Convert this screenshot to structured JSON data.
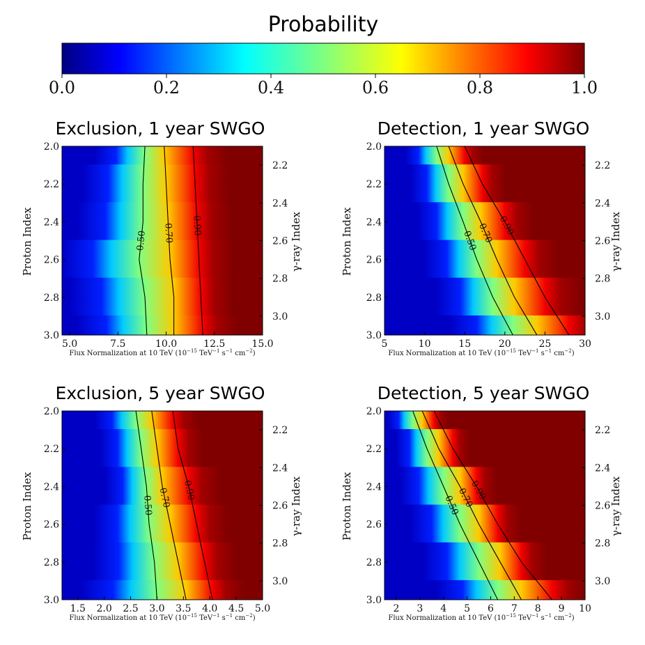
{
  "colorbar": {
    "title": "Probability",
    "ticks": [
      "0.0",
      "0.2",
      "0.4",
      "0.6",
      "0.8",
      "1.0"
    ],
    "tick_values": [
      0.0,
      0.2,
      0.4,
      0.6,
      0.8,
      1.0
    ],
    "range": [
      0.0,
      1.0
    ],
    "colormap": "jet",
    "colormap_stops": [
      "#000080",
      "#0000ff",
      "#00ffff",
      "#ffff00",
      "#ff0000",
      "#800000"
    ]
  },
  "chart_data": [
    {
      "type": "heatmap",
      "title": "Exclusion, 1 year SWGO",
      "xlabel": "Flux Normalization at 10 TeV (10^{-15} TeV^{-1} s^{-1} cm^{-2})",
      "ylabel": "Proton Index",
      "y2label": "γ-ray Index",
      "xlim": [
        4.6,
        15.0
      ],
      "ylim": [
        3.0,
        2.0
      ],
      "y2lim": [
        3.1,
        2.1
      ],
      "xticks": [
        "5.0",
        "7.5",
        "10.0",
        "12.5",
        "15.0"
      ],
      "xtick_values": [
        5.0,
        7.5,
        10.0,
        12.5,
        15.0
      ],
      "yticks": [
        "2.0",
        "2.2",
        "2.4",
        "2.6",
        "2.8",
        "3.0"
      ],
      "ytick_values": [
        2.0,
        2.2,
        2.4,
        2.6,
        2.8,
        3.0
      ],
      "y2ticks": [
        "2.2",
        "2.4",
        "2.6",
        "2.8",
        "3.0"
      ],
      "y2tick_values": [
        2.2,
        2.4,
        2.6,
        2.8,
        3.0
      ],
      "contours": [
        {
          "level": 0.5,
          "label": "0.50",
          "points": [
            [
              8.9,
              2.0
            ],
            [
              8.8,
              2.2
            ],
            [
              8.8,
              2.4
            ],
            [
              8.6,
              2.6
            ],
            [
              8.9,
              2.8
            ],
            [
              9.0,
              3.0
            ]
          ]
        },
        {
          "level": 0.7,
          "label": "0.70",
          "points": [
            [
              9.9,
              2.0
            ],
            [
              10.0,
              2.2
            ],
            [
              10.1,
              2.4
            ],
            [
              10.2,
              2.6
            ],
            [
              10.4,
              2.8
            ],
            [
              10.4,
              3.0
            ]
          ]
        },
        {
          "level": 0.9,
          "label": "0.90",
          "points": [
            [
              11.4,
              2.0
            ],
            [
              11.5,
              2.2
            ],
            [
              11.6,
              2.4
            ],
            [
              11.7,
              2.6
            ],
            [
              11.8,
              2.8
            ],
            [
              11.9,
              3.0
            ]
          ]
        }
      ]
    },
    {
      "type": "heatmap",
      "title": "Detection, 1 year SWGO",
      "xlabel": "Flux Normalization at 10 TeV (10^{-15} TeV^{-1} s^{-1} cm^{-2})",
      "ylabel": "Proton Index",
      "y2label": "γ-ray Index",
      "xlim": [
        5,
        30
      ],
      "ylim": [
        3.0,
        2.0
      ],
      "y2lim": [
        3.1,
        2.1
      ],
      "xticks": [
        "5",
        "10",
        "15",
        "20",
        "25",
        "30"
      ],
      "xtick_values": [
        5,
        10,
        15,
        20,
        25,
        30
      ],
      "yticks": [
        "2.0",
        "2.2",
        "2.4",
        "2.6",
        "2.8",
        "3.0"
      ],
      "ytick_values": [
        2.0,
        2.2,
        2.4,
        2.6,
        2.8,
        3.0
      ],
      "y2ticks": [
        "2.2",
        "2.4",
        "2.6",
        "2.8",
        "3.0"
      ],
      "y2tick_values": [
        2.2,
        2.4,
        2.6,
        2.8,
        3.0
      ],
      "contours": [
        {
          "level": 0.5,
          "label": "0.50",
          "points": [
            [
              11.5,
              2.0
            ],
            [
              13.0,
              2.2
            ],
            [
              14.8,
              2.4
            ],
            [
              16.5,
              2.6
            ],
            [
              18.5,
              2.8
            ],
            [
              21.0,
              3.0
            ]
          ]
        },
        {
          "level": 0.7,
          "label": "0.70",
          "points": [
            [
              13.0,
              2.0
            ],
            [
              14.8,
              2.2
            ],
            [
              17.0,
              2.4
            ],
            [
              19.0,
              2.6
            ],
            [
              21.2,
              2.8
            ],
            [
              24.0,
              3.0
            ]
          ]
        },
        {
          "level": 0.9,
          "label": "0.90",
          "points": [
            [
              15.0,
              2.0
            ],
            [
              17.2,
              2.2
            ],
            [
              20.0,
              2.4
            ],
            [
              22.5,
              2.6
            ],
            [
              25.0,
              2.8
            ],
            [
              28.0,
              3.0
            ]
          ]
        }
      ]
    },
    {
      "type": "heatmap",
      "title": "Exclusion, 5 year SWGO",
      "xlabel": "Flux Normalization at 10 TeV (10^{-15} TeV^{-1} s^{-1} cm^{-2})",
      "ylabel": "Proton Index",
      "y2label": "γ-ray Index",
      "xlim": [
        1.2,
        5.0
      ],
      "ylim": [
        3.0,
        2.0
      ],
      "y2lim": [
        3.1,
        2.1
      ],
      "xticks": [
        "1.5",
        "2.0",
        "2.5",
        "3.0",
        "3.5",
        "4.0",
        "4.5",
        "5.0"
      ],
      "xtick_values": [
        1.5,
        2.0,
        2.5,
        3.0,
        3.5,
        4.0,
        4.5,
        5.0
      ],
      "yticks": [
        "2.0",
        "2.2",
        "2.4",
        "2.6",
        "2.8",
        "3.0"
      ],
      "ytick_values": [
        2.0,
        2.2,
        2.4,
        2.6,
        2.8,
        3.0
      ],
      "y2ticks": [
        "2.2",
        "2.4",
        "2.6",
        "2.8",
        "3.0"
      ],
      "y2tick_values": [
        2.2,
        2.4,
        2.6,
        2.8,
        3.0
      ],
      "contours": [
        {
          "level": 0.5,
          "label": "0.50",
          "points": [
            [
              2.6,
              2.0
            ],
            [
              2.7,
              2.2
            ],
            [
              2.8,
              2.4
            ],
            [
              2.85,
              2.6
            ],
            [
              2.95,
              2.8
            ],
            [
              3.0,
              3.0
            ]
          ]
        },
        {
          "level": 0.7,
          "label": "0.70",
          "points": [
            [
              2.9,
              2.0
            ],
            [
              3.0,
              2.2
            ],
            [
              3.1,
              2.4
            ],
            [
              3.25,
              2.6
            ],
            [
              3.4,
              2.8
            ],
            [
              3.55,
              3.0
            ]
          ]
        },
        {
          "level": 0.9,
          "label": "0.90",
          "points": [
            [
              3.3,
              2.0
            ],
            [
              3.4,
              2.2
            ],
            [
              3.6,
              2.4
            ],
            [
              3.75,
              2.6
            ],
            [
              3.9,
              2.8
            ],
            [
              4.05,
              3.0
            ]
          ]
        }
      ]
    },
    {
      "type": "heatmap",
      "title": "Detection, 5 year SWGO",
      "xlabel": "Flux Normalization at 10 TeV (10^{-15} TeV^{-1} s^{-1} cm^{-2})",
      "ylabel": "Proton Index",
      "y2label": "γ-ray Index",
      "xlim": [
        1.5,
        10
      ],
      "ylim": [
        3.0,
        2.0
      ],
      "y2lim": [
        3.1,
        2.1
      ],
      "xticks": [
        "2",
        "3",
        "4",
        "5",
        "6",
        "7",
        "8",
        "9",
        "10"
      ],
      "xtick_values": [
        2,
        3,
        4,
        5,
        6,
        7,
        8,
        9,
        10
      ],
      "yticks": [
        "2.0",
        "2.2",
        "2.4",
        "2.6",
        "2.8",
        "3.0"
      ],
      "ytick_values": [
        2.0,
        2.2,
        2.4,
        2.6,
        2.8,
        3.0
      ],
      "y2ticks": [
        "2.2",
        "2.4",
        "2.6",
        "2.8",
        "3.0"
      ],
      "y2tick_values": [
        2.2,
        2.4,
        2.6,
        2.8,
        3.0
      ],
      "contours": [
        {
          "level": 0.5,
          "label": "0.50",
          "points": [
            [
              2.7,
              2.0
            ],
            [
              3.3,
              2.2
            ],
            [
              4.0,
              2.4
            ],
            [
              4.7,
              2.6
            ],
            [
              5.5,
              2.8
            ],
            [
              6.3,
              3.0
            ]
          ]
        },
        {
          "level": 0.7,
          "label": "0.70",
          "points": [
            [
              3.1,
              2.0
            ],
            [
              3.8,
              2.2
            ],
            [
              4.7,
              2.4
            ],
            [
              5.5,
              2.6
            ],
            [
              6.4,
              2.8
            ],
            [
              7.3,
              3.0
            ]
          ]
        },
        {
          "level": 0.9,
          "label": "0.90",
          "points": [
            [
              3.6,
              2.0
            ],
            [
              4.4,
              2.2
            ],
            [
              5.4,
              2.4
            ],
            [
              6.3,
              2.6
            ],
            [
              7.3,
              2.8
            ],
            [
              8.6,
              3.0
            ]
          ]
        }
      ]
    }
  ]
}
